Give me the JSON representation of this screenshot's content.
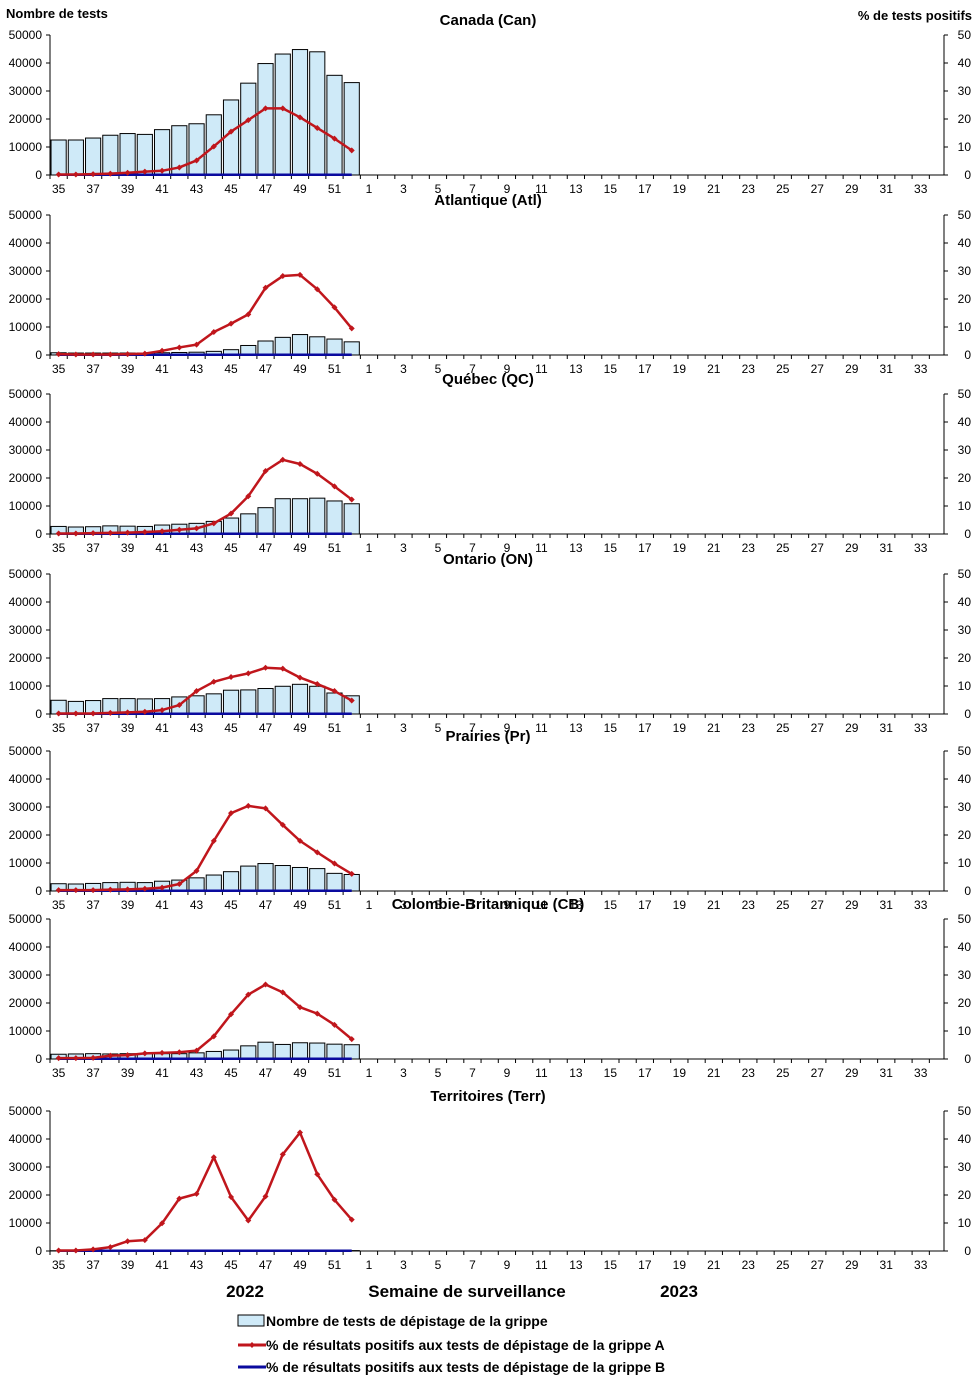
{
  "chart_data": {
    "type": "bar+line",
    "y_left_label": "Nombre de tests",
    "y_right_label": "% de tests positifs",
    "y_left_range": [
      0,
      50000
    ],
    "y_left_ticks": [
      "0",
      "10000",
      "20000",
      "30000",
      "40000",
      "50000"
    ],
    "y_right_range": [
      0,
      50
    ],
    "y_right_ticks": [
      "0",
      "10",
      "20",
      "30",
      "40",
      "50"
    ],
    "weeks": [
      "35",
      "36",
      "37",
      "38",
      "39",
      "40",
      "41",
      "42",
      "43",
      "44",
      "45",
      "46",
      "47",
      "48",
      "49",
      "50",
      "51",
      "52",
      "1",
      "2",
      "3",
      "4",
      "5",
      "6",
      "7",
      "8",
      "9",
      "10",
      "11",
      "12",
      "13",
      "14",
      "15",
      "16",
      "17",
      "18",
      "19",
      "20",
      "21",
      "22",
      "23",
      "24",
      "25",
      "26",
      "27",
      "28",
      "29",
      "30",
      "31",
      "32",
      "33",
      "34"
    ],
    "week_tick_labels": [
      "35",
      "37",
      "39",
      "41",
      "43",
      "45",
      "47",
      "49",
      "51",
      "1",
      "3",
      "5",
      "7",
      "9",
      "11",
      "13",
      "15",
      "17",
      "19",
      "21",
      "23",
      "25",
      "27",
      "29",
      "31",
      "33"
    ],
    "xlabel": "Semaine de surveillance",
    "year_left": "2022",
    "year_right": "2023",
    "legend": {
      "bars": "Nombre de tests de dépistage de la grippe",
      "fluA": "% de résultats positifs aux tests de dépistage de la grippe A",
      "fluB": "% de résultats positifs aux tests de dépistage de la grippe B"
    },
    "colors": {
      "bar_fill": "#CFEAF8",
      "bar_stroke": "#000000",
      "fluA": "#C0161C",
      "fluB": "#0A0A9E"
    },
    "panels": [
      {
        "title": "Canada (Can)",
        "tests": [
          12500,
          12500,
          13200,
          14200,
          14800,
          14500,
          16200,
          17600,
          18300,
          21500,
          26800,
          32800,
          39800,
          43200,
          44800,
          44000,
          35600,
          33000
        ],
        "fluA": [
          0.2,
          0.2,
          0.3,
          0.5,
          0.8,
          1.2,
          1.5,
          2.7,
          5.2,
          10.2,
          15.5,
          19.6,
          23.8,
          23.8,
          20.6,
          16.8,
          13.0,
          8.8
        ],
        "fluB": [
          0.1,
          0.1,
          0.1,
          0.1,
          0.1,
          0.1,
          0.1,
          0.1,
          0.1,
          0.1,
          0.1,
          0.1,
          0.1,
          0.1,
          0.1,
          0.1,
          0.1,
          0.1
        ]
      },
      {
        "title": "Atlantique (Atl)",
        "tests": [
          800,
          700,
          700,
          700,
          700,
          700,
          800,
          900,
          1000,
          1300,
          1900,
          3400,
          5000,
          6300,
          7300,
          6500,
          5700,
          4700
        ],
        "fluA": [
          0.3,
          0.2,
          0.2,
          0.2,
          0.3,
          0.5,
          1.5,
          2.7,
          3.7,
          8.2,
          11.2,
          14.5,
          24.0,
          28.2,
          28.6,
          23.5,
          17.0,
          9.5
        ],
        "fluB": [
          0.1,
          0.1,
          0.1,
          0.1,
          0.1,
          0.1,
          0.1,
          0.1,
          0.1,
          0.1,
          0.1,
          0.1,
          0.1,
          0.1,
          0.1,
          0.1,
          0.1,
          0.1
        ]
      },
      {
        "title": "Québec (QC)",
        "tests": [
          2700,
          2500,
          2600,
          2900,
          2800,
          2700,
          3200,
          3500,
          3800,
          4500,
          5700,
          7200,
          9400,
          12600,
          12600,
          12800,
          11800,
          10800
        ],
        "fluA": [
          0.2,
          0.2,
          0.3,
          0.4,
          0.5,
          0.7,
          1.0,
          1.5,
          2.0,
          3.8,
          7.3,
          13.5,
          22.5,
          26.5,
          25.0,
          21.5,
          17.0,
          12.3
        ],
        "fluB": [
          0.1,
          0.1,
          0.1,
          0.1,
          0.1,
          0.1,
          0.1,
          0.1,
          0.1,
          0.1,
          0.1,
          0.1,
          0.1,
          0.1,
          0.1,
          0.1,
          0.1,
          0.1
        ]
      },
      {
        "title": "Ontario (ON)",
        "tests": [
          4900,
          4500,
          4800,
          5500,
          5500,
          5400,
          5500,
          6100,
          6500,
          7200,
          8500,
          8600,
          9100,
          9900,
          10600,
          9900,
          7500,
          6500
        ],
        "fluA": [
          0.2,
          0.2,
          0.2,
          0.4,
          0.6,
          0.8,
          1.4,
          3.2,
          8.2,
          11.5,
          13.2,
          14.5,
          16.5,
          16.2,
          13.0,
          10.7,
          8.2,
          4.8
        ],
        "fluB": [
          0.1,
          0.1,
          0.1,
          0.1,
          0.1,
          0.1,
          0.1,
          0.1,
          0.1,
          0.1,
          0.1,
          0.1,
          0.1,
          0.1,
          0.1,
          0.1,
          0.1,
          0.1
        ]
      },
      {
        "title": "Prairies (Pr)",
        "tests": [
          2600,
          2500,
          2700,
          3000,
          3100,
          3000,
          3500,
          3900,
          4700,
          5700,
          6900,
          8900,
          9800,
          9100,
          8400,
          8000,
          6300,
          5900
        ],
        "fluA": [
          0.3,
          0.3,
          0.3,
          0.5,
          0.6,
          0.8,
          1.2,
          2.5,
          7.2,
          17.9,
          27.8,
          30.4,
          29.5,
          23.6,
          17.9,
          13.8,
          9.8,
          6.1
        ],
        "fluB": [
          0.1,
          0.1,
          0.1,
          0.1,
          0.1,
          0.1,
          0.1,
          0.1,
          0.1,
          0.1,
          0.1,
          0.1,
          0.1,
          0.1,
          0.1,
          0.1,
          0.1,
          0.1
        ]
      },
      {
        "title": "Colombie-Britannique (CB)",
        "tests": [
          1700,
          1800,
          1900,
          1800,
          1900,
          1900,
          1900,
          1900,
          2200,
          2700,
          3200,
          4700,
          6000,
          5200,
          5800,
          5700,
          5300,
          5100
        ],
        "fluA": [
          0.3,
          0.3,
          0.4,
          1.2,
          1.4,
          2.0,
          2.2,
          2.4,
          3.0,
          8.1,
          16.0,
          23.0,
          26.6,
          23.8,
          18.5,
          16.2,
          12.2,
          7.1
        ],
        "fluB": [
          0.1,
          0.1,
          0.1,
          0.1,
          0.1,
          0.1,
          0.1,
          0.1,
          0.1,
          0.1,
          0.1,
          0.1,
          0.1,
          0.1,
          0.1,
          0.1,
          0.1,
          0.1
        ]
      },
      {
        "title": "Territoires (Terr)",
        "tests": [
          100,
          100,
          100,
          100,
          100,
          100,
          100,
          100,
          150,
          150,
          150,
          150,
          150,
          150,
          150,
          150,
          150,
          150
        ],
        "fluA": [
          0.2,
          0.2,
          0.6,
          1.4,
          3.5,
          3.9,
          9.9,
          18.7,
          20.4,
          33.5,
          19.3,
          10.9,
          19.5,
          34.5,
          42.3,
          27.4,
          18.3,
          11.2
        ],
        "fluB": [
          0.1,
          0.1,
          0.1,
          0.1,
          0.1,
          0.1,
          0.1,
          0.1,
          0.1,
          0.1,
          0.1,
          0.1,
          0.1,
          0.1,
          0.1,
          0.1,
          0.1,
          0.1
        ]
      }
    ]
  }
}
